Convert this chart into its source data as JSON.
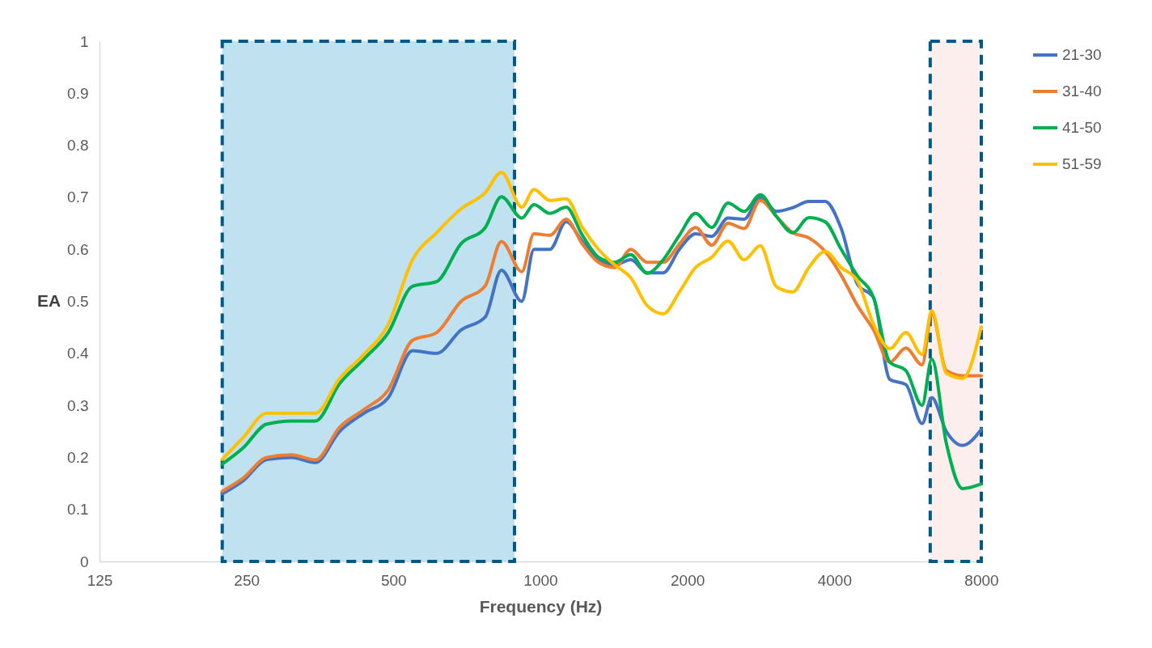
{
  "chart_data": {
    "type": "line",
    "xlabel": "Frequency (Hz)",
    "ylabel": "EA",
    "log": "x",
    "xlim": [
      125,
      8000
    ],
    "xticks": [
      125,
      250,
      500,
      1000,
      2000,
      4000,
      8000
    ],
    "ylim": [
      0,
      1
    ],
    "yticks": [
      0,
      0.1,
      0.2,
      0.3,
      0.4,
      0.5,
      0.6,
      0.7,
      0.8,
      0.9,
      1
    ],
    "grid": false,
    "legend": "right",
    "marker": "none",
    "line_style": "solid",
    "x": [
      223,
      246,
      275,
      309,
      346,
      388,
      435,
      488,
      547,
      613,
      688,
      771,
      832,
      916,
      970,
      1046,
      1129,
      1219,
      1315,
      1420,
      1532,
      1654,
      1785,
      1926,
      2079,
      2244,
      2422,
      2614,
      2821,
      3045,
      3287,
      3547,
      3829,
      4132,
      4460,
      4813,
      5195,
      5606,
      6051,
      6333,
      6784,
      7322,
      8000
    ],
    "series": [
      {
        "name": "21-30",
        "color": "#4472c4",
        "values": [
          0.13,
          0.155,
          0.196,
          0.2,
          0.19,
          0.25,
          0.285,
          0.315,
          0.405,
          0.4,
          0.445,
          0.47,
          0.56,
          0.5,
          0.6,
          0.6,
          0.653,
          0.615,
          0.58,
          0.57,
          0.58,
          0.555,
          0.555,
          0.6,
          0.63,
          0.625,
          0.66,
          0.658,
          0.7,
          0.673,
          0.68,
          0.692,
          0.692,
          0.64,
          0.533,
          0.507,
          0.35,
          0.34,
          0.265,
          0.315,
          0.25,
          0.223,
          0.254
        ]
      },
      {
        "name": "31-40",
        "color": "#ed7d31",
        "values": [
          0.135,
          0.16,
          0.2,
          0.205,
          0.195,
          0.258,
          0.292,
          0.33,
          0.425,
          0.44,
          0.5,
          0.53,
          0.615,
          0.557,
          0.63,
          0.627,
          0.658,
          0.61,
          0.575,
          0.565,
          0.6,
          0.575,
          0.575,
          0.61,
          0.642,
          0.608,
          0.65,
          0.64,
          0.694,
          0.663,
          0.632,
          0.622,
          0.596,
          0.55,
          0.492,
          0.445,
          0.383,
          0.41,
          0.378,
          0.476,
          0.367,
          0.357,
          0.357
        ]
      },
      {
        "name": "41-50",
        "color": "#00b050",
        "values": [
          0.187,
          0.218,
          0.264,
          0.27,
          0.27,
          0.342,
          0.389,
          0.44,
          0.529,
          0.538,
          0.611,
          0.642,
          0.701,
          0.66,
          0.686,
          0.669,
          0.681,
          0.627,
          0.585,
          0.575,
          0.59,
          0.554,
          0.58,
          0.627,
          0.669,
          0.642,
          0.689,
          0.673,
          0.705,
          0.663,
          0.632,
          0.661,
          0.653,
          0.6,
          0.549,
          0.507,
          0.383,
          0.367,
          0.3,
          0.389,
          0.227,
          0.14,
          0.149
        ]
      },
      {
        "name": "51-59",
        "color": "#ffc000",
        "values": [
          0.196,
          0.238,
          0.285,
          0.285,
          0.285,
          0.352,
          0.398,
          0.456,
          0.58,
          0.632,
          0.678,
          0.709,
          0.748,
          0.681,
          0.715,
          0.694,
          0.697,
          0.642,
          0.6,
          0.57,
          0.545,
          0.492,
          0.476,
          0.518,
          0.565,
          0.585,
          0.616,
          0.58,
          0.607,
          0.528,
          0.518,
          0.565,
          0.596,
          0.565,
          0.539,
          0.456,
          0.409,
          0.44,
          0.398,
          0.482,
          0.362,
          0.352,
          0.451
        ]
      }
    ],
    "bands": [
      {
        "axis": "x",
        "from": 223,
        "to": 885,
        "color": "#c0e1ef"
      },
      {
        "axis": "x",
        "from": 6287,
        "to": 8000,
        "color": "#fdeeee"
      }
    ]
  }
}
